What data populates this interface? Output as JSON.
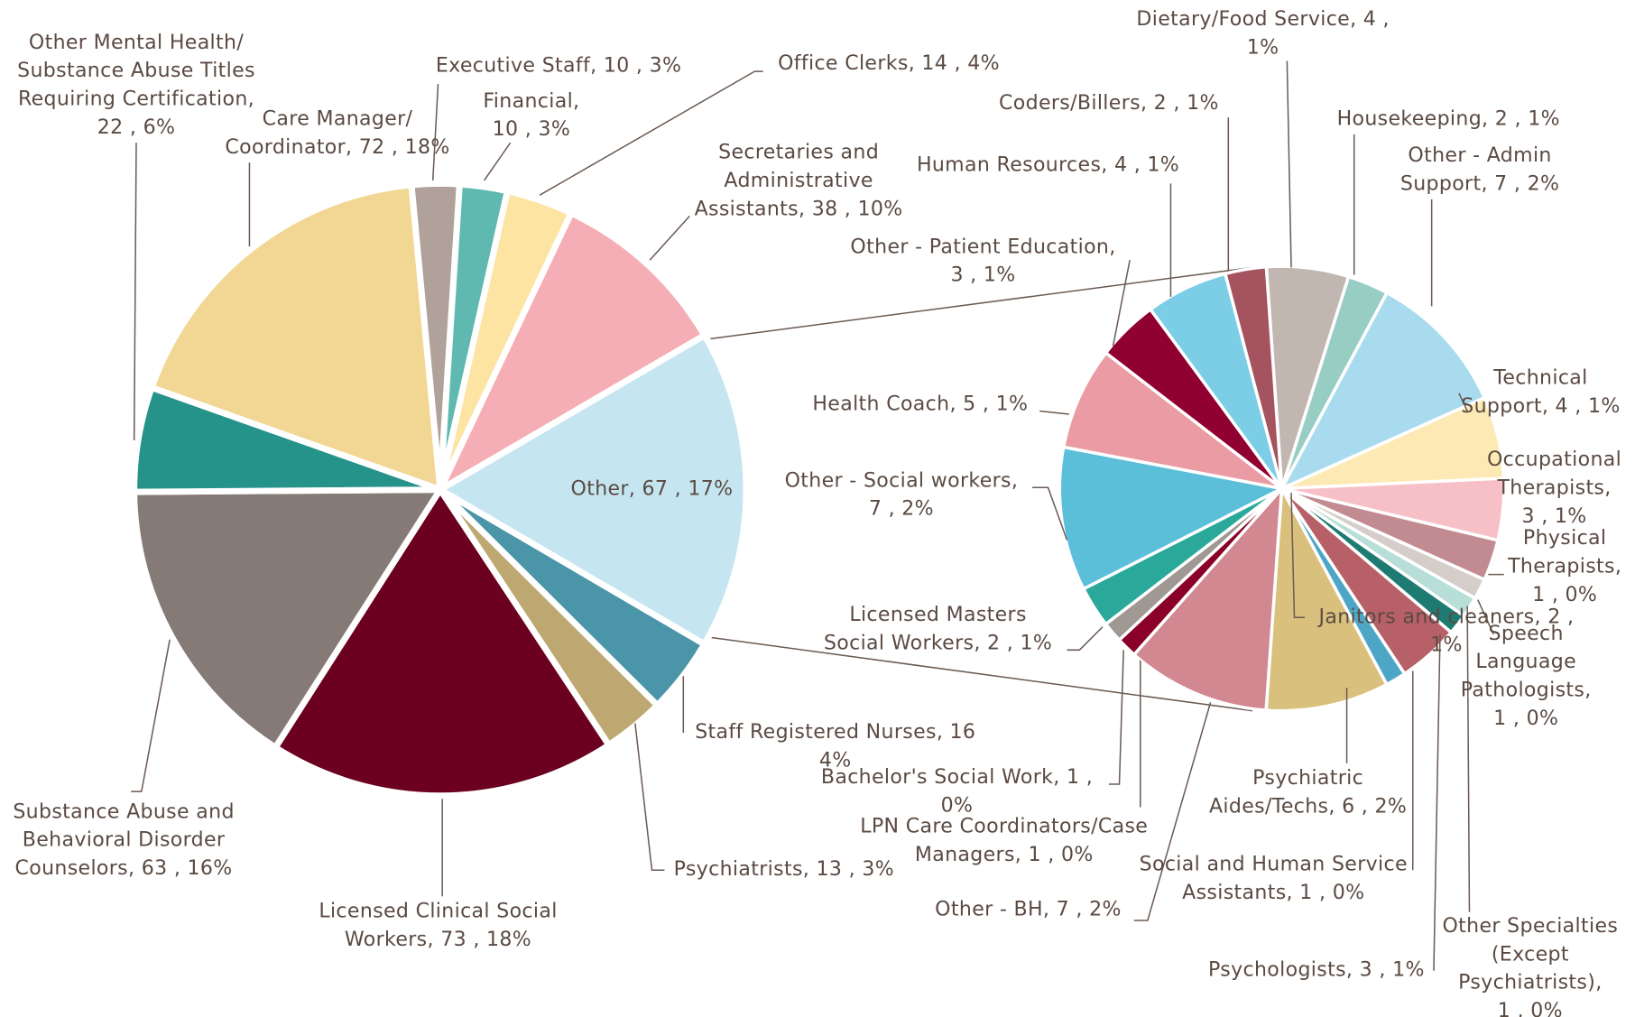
{
  "chart_data": [
    {
      "type": "pie",
      "values": [
        10,
        10,
        14,
        38,
        67,
        16,
        13,
        73,
        63,
        22,
        72
      ],
      "value_labels": [
        [
          "Executive Staff,  10 , 3%"
        ],
        [
          "Financial,",
          "10 , 3%"
        ],
        [
          "Office Clerks,  14 , 4%"
        ],
        [
          "Secretaries and",
          "Administrative",
          "Assistants,  38 , 10%"
        ],
        [
          "Other,  67 , 17%"
        ],
        [
          "Staff Registered Nurses,  16",
          "4%"
        ],
        [
          "Psychiatrists,  13 , 3%"
        ],
        [
          "Licensed Clinical Social",
          "Workers,  73 , 18%"
        ],
        [
          "Substance Abuse and",
          "Behavioral Disorder",
          "Counselors,  63 , 16%"
        ],
        [
          "Other Mental Health/",
          "Substance Abuse Titles",
          "Requiring Certification,",
          "22 , 6%"
        ],
        [
          "Care Manager/",
          "Coordinator,  72 , 18%"
        ]
      ],
      "colors": [
        "#b0a29a",
        "#60b9b0",
        "#fde4a3",
        "#f5aeb5",
        "#c5e6f1",
        "#4b95a8",
        "#bda871",
        "#6b0020",
        "#857a75",
        "#25938a",
        "#f2d694"
      ]
    },
    {
      "type": "pie",
      "values": [
        4,
        2,
        7,
        4,
        3,
        2,
        1,
        1,
        1,
        3,
        1,
        6,
        7,
        1,
        1,
        2,
        7,
        5,
        3,
        4,
        2
      ],
      "value_labels": [
        [
          "Dietary/Food Service,  4 ,",
          "1%"
        ],
        [
          "Housekeeping,  2 , 1%"
        ],
        [
          "Other - Admin",
          "Support,  7 , 2%"
        ],
        [
          "Technical",
          "Support,  4 , 1%"
        ],
        [
          "Occupational",
          "Therapists,",
          "3 , 1%"
        ],
        [
          "Janitors and cleaners,  2 ,",
          "1%"
        ],
        [
          "Physical",
          "Therapists,",
          "1 , 0%"
        ],
        [
          "Speech",
          "Language",
          "Pathologists,",
          "1 , 0%"
        ],
        [
          "Other Specialties",
          "(Except",
          "Psychiatrists),",
          "1 , 0%"
        ],
        [
          "Psychologists,  3 , 1%"
        ],
        [
          "Social and Human Service",
          "Assistants,  1 , 0%"
        ],
        [
          "Psychiatric",
          "Aides/Techs,  6 , 2%"
        ],
        [
          "Other - BH,  7 , 2%"
        ],
        [
          "LPN Care Coordinators/Case",
          "Managers,  1 , 0%"
        ],
        [
          "Bachelor's Social Work,  1 ,",
          "0%"
        ],
        [
          "Licensed Masters",
          "Social Workers,  2 , 1%"
        ],
        [
          "Other - Social workers,",
          "7 , 2%"
        ],
        [
          "Health Coach,  5 , 1%"
        ],
        [
          "Other - Patient Education,",
          "3 , 1%"
        ],
        [
          "Human Resources,  4 , 1%"
        ],
        [
          "Coders/Billers,  2 , 1%"
        ]
      ],
      "colors": [
        "#c2b6b1",
        "#98cdc4",
        "#a9dbee",
        "#fde9b4",
        "#f7c0c6",
        "#c28b91",
        "#d5cdc9",
        "#b8ded8",
        "#1e7b72",
        "#b76068",
        "#4ea6c6",
        "#d9c17d",
        "#d28890",
        "#8a0028",
        "#a09892",
        "#2aa89a",
        "#5cbfda",
        "#eb9ba3",
        "#900030",
        "#7ccde6",
        "#a5535e"
      ]
    }
  ]
}
